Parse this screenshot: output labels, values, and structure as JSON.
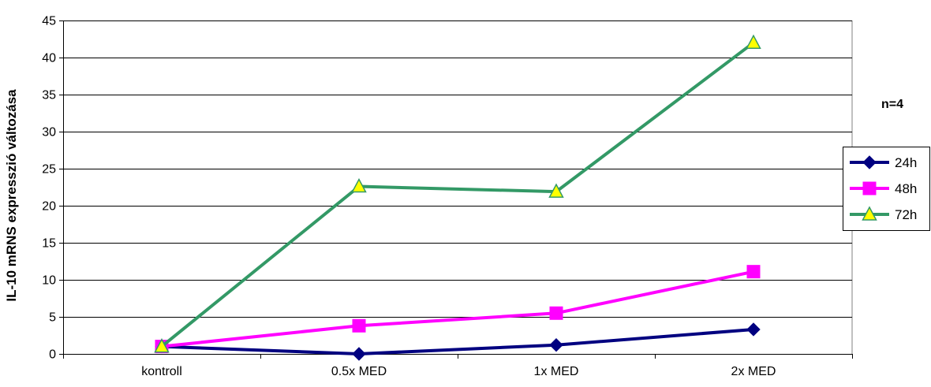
{
  "chart_data": {
    "type": "line",
    "title": "",
    "xlabel": "",
    "ylabel": "IL-10 mRNS expresszió változása",
    "annotation": "n=4",
    "categories": [
      "kontroll",
      "0.5x MED",
      "1x MED",
      "2x MED"
    ],
    "ylim": [
      0,
      45
    ],
    "yticks": [
      0,
      5,
      10,
      15,
      20,
      25,
      30,
      35,
      40,
      45
    ],
    "grid": true,
    "legend_position": "right",
    "series": [
      {
        "name": "24h",
        "values": [
          1.0,
          0.0,
          1.2,
          3.3
        ],
        "color": "#000080",
        "marker": "diamond"
      },
      {
        "name": "48h",
        "values": [
          1.0,
          3.8,
          5.5,
          11.1
        ],
        "color": "#ff00ff",
        "marker": "square"
      },
      {
        "name": "72h",
        "values": [
          1.0,
          22.6,
          21.9,
          42.0
        ],
        "color": "#339966",
        "marker": "triangle",
        "marker_fill": "#ffff00"
      }
    ]
  }
}
